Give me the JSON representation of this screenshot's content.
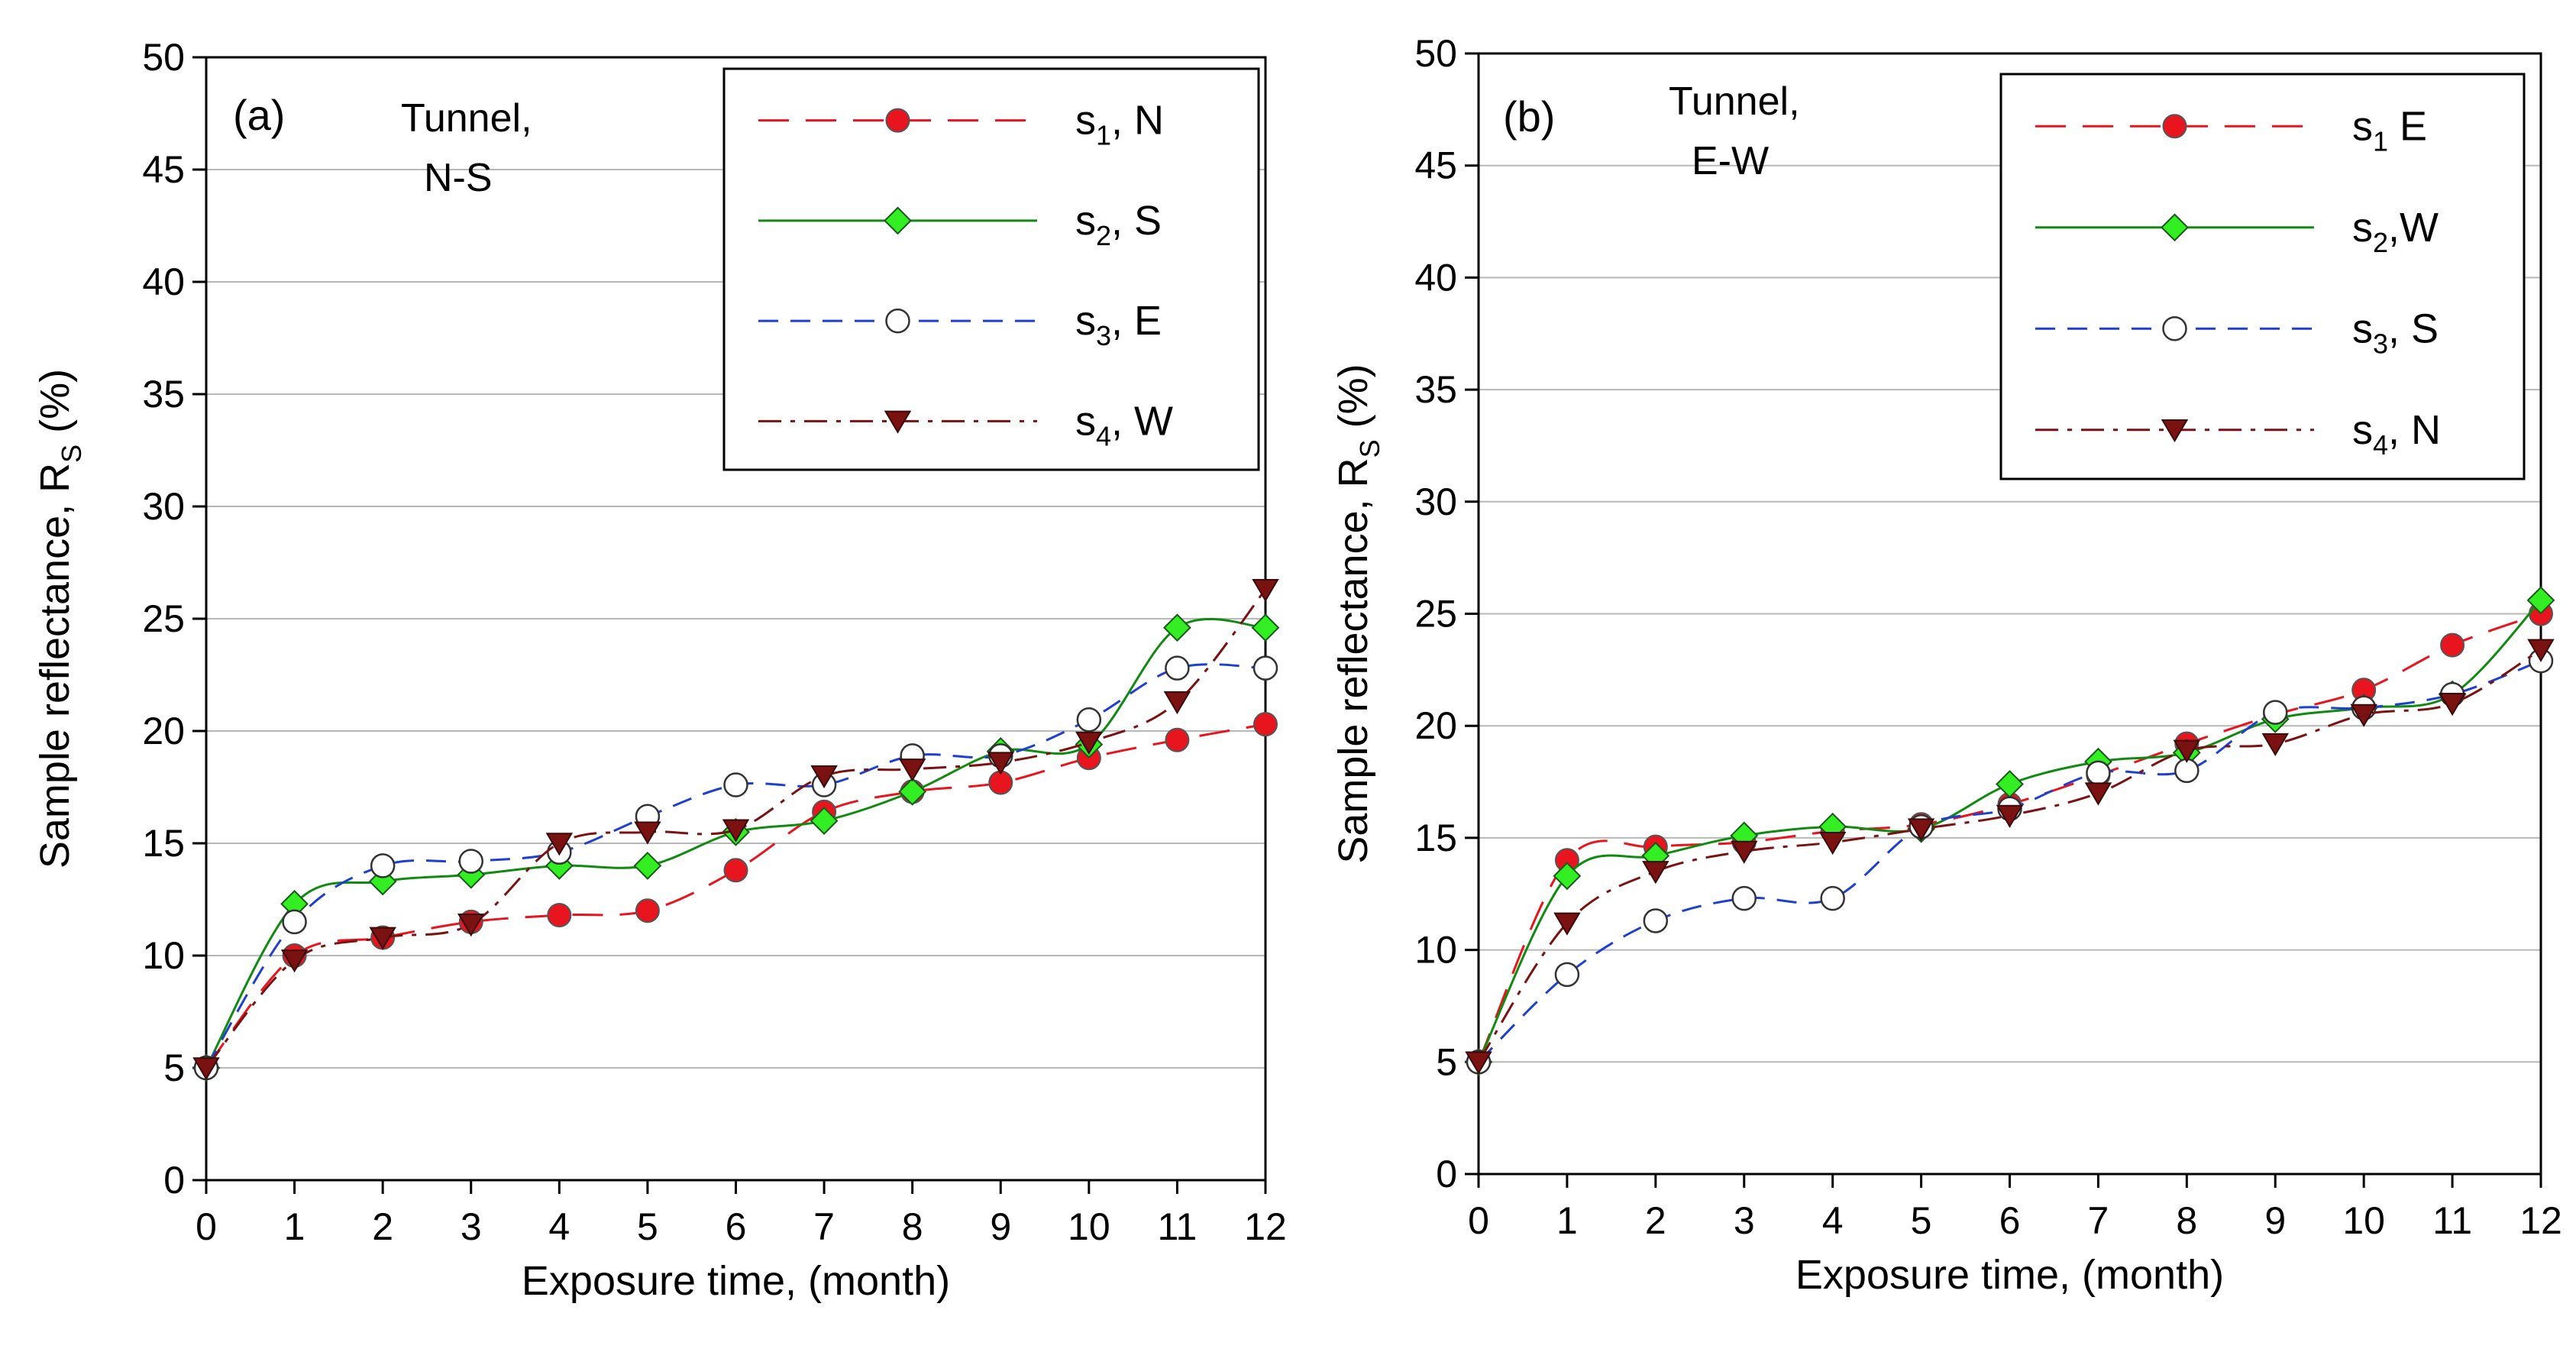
{
  "chart_data": [
    {
      "type": "line",
      "panel_label": "(a)",
      "annotation": [
        "Tunnel,",
        "N-S"
      ],
      "xlabel": "Exposure time, (month)",
      "ylabel": {
        "main": "Sample reflectance, R",
        "sub": "S",
        "unit": " (%)"
      },
      "xlim": [
        0,
        12
      ],
      "ylim": [
        0,
        50
      ],
      "xticks": [
        "0",
        "1",
        "2",
        "3",
        "4",
        "5",
        "6",
        "7",
        "8",
        "9",
        "10",
        "11",
        "12"
      ],
      "yticks": [
        "0",
        "5",
        "10",
        "15",
        "20",
        "25",
        "30",
        "35",
        "40",
        "45",
        "50"
      ],
      "grid": "horizontal",
      "legend_position": "top-right",
      "x": [
        0,
        1,
        2,
        3,
        4,
        5,
        6,
        7,
        8,
        9,
        10,
        11,
        12
      ],
      "series": [
        {
          "name": "s1, N",
          "label": "s",
          "sub": "1",
          "suffix": ", N",
          "color": "#e8141e",
          "marker": "circle-filled",
          "dash": "long-dash",
          "values": [
            5.0,
            10.0,
            10.8,
            11.5,
            11.8,
            12.0,
            13.8,
            16.4,
            17.3,
            17.7,
            18.8,
            19.6,
            20.3
          ]
        },
        {
          "name": "s2, S",
          "label": "s",
          "sub": "2",
          "suffix": ", S",
          "color": "#118a11",
          "marker": "diamond",
          "dash": "solid",
          "values": [
            5.0,
            12.3,
            13.3,
            13.6,
            14.0,
            14.0,
            15.5,
            16.0,
            17.3,
            19.1,
            19.4,
            24.6,
            24.6
          ]
        },
        {
          "name": "s3, E",
          "label": "s",
          "sub": "3",
          "suffix": ", E",
          "color": "#1f3fd0",
          "marker": "circle-open",
          "dash": "dash",
          "values": [
            5.0,
            11.5,
            14.0,
            14.2,
            14.6,
            16.2,
            17.6,
            17.6,
            18.9,
            18.9,
            20.5,
            22.8,
            22.8
          ]
        },
        {
          "name": "s4, W",
          "label": "s",
          "sub": "4",
          "suffix": ", W",
          "color": "#7a1212",
          "marker": "triangle-down",
          "dash": "dash-dot",
          "values": [
            5.0,
            9.8,
            10.8,
            11.4,
            15.0,
            15.5,
            15.6,
            18.0,
            18.3,
            18.6,
            19.5,
            21.3,
            26.3
          ]
        }
      ]
    },
    {
      "type": "line",
      "panel_label": "(b)",
      "annotation": [
        "Tunnel,",
        "E-W"
      ],
      "xlabel": "Exposure time, (month)",
      "ylabel": {
        "main": "Sample reflectance, R",
        "sub": "S",
        "unit": " (%)"
      },
      "xlim": [
        0,
        12
      ],
      "ylim": [
        0,
        50
      ],
      "xticks": [
        "0",
        "1",
        "2",
        "3",
        "4",
        "5",
        "6",
        "7",
        "8",
        "9",
        "10",
        "11",
        "12"
      ],
      "yticks": [
        "0",
        "5",
        "10",
        "15",
        "20",
        "25",
        "30",
        "35",
        "40",
        "45",
        "50"
      ],
      "grid": "horizontal",
      "legend_position": "top-right",
      "x": [
        0,
        1,
        2,
        3,
        4,
        5,
        6,
        7,
        8,
        9,
        10,
        11,
        12
      ],
      "series": [
        {
          "name": "s1 E",
          "label": "s",
          "sub": "1",
          "suffix": " E",
          "color": "#e8141e",
          "marker": "circle-filled",
          "dash": "long-dash",
          "values": [
            5.0,
            14.0,
            14.6,
            14.8,
            15.3,
            15.6,
            16.5,
            17.8,
            19.2,
            20.5,
            21.6,
            23.6,
            25.0
          ]
        },
        {
          "name": "s2,W",
          "label": "s",
          "sub": "2",
          "suffix": ",W",
          "color": "#118a11",
          "marker": "diamond",
          "dash": "solid",
          "values": [
            5.0,
            13.3,
            14.2,
            15.1,
            15.5,
            15.4,
            17.4,
            18.4,
            18.8,
            20.3,
            20.8,
            21.4,
            25.6
          ]
        },
        {
          "name": "s3, S",
          "label": "s",
          "sub": "3",
          "suffix": ", S",
          "color": "#1f3fd0",
          "marker": "circle-open",
          "dash": "dash",
          "values": [
            5.0,
            8.9,
            11.3,
            12.3,
            12.3,
            15.5,
            16.3,
            17.9,
            18.0,
            20.6,
            20.8,
            21.4,
            22.9
          ]
        },
        {
          "name": "s4, N",
          "label": "s",
          "sub": "4",
          "suffix": ", N",
          "color": "#7a1212",
          "marker": "triangle-down",
          "dash": "dash-dot",
          "values": [
            5.0,
            11.2,
            13.5,
            14.4,
            14.8,
            15.4,
            16.0,
            17.0,
            18.9,
            19.2,
            20.5,
            21.0,
            23.4
          ]
        }
      ]
    }
  ]
}
